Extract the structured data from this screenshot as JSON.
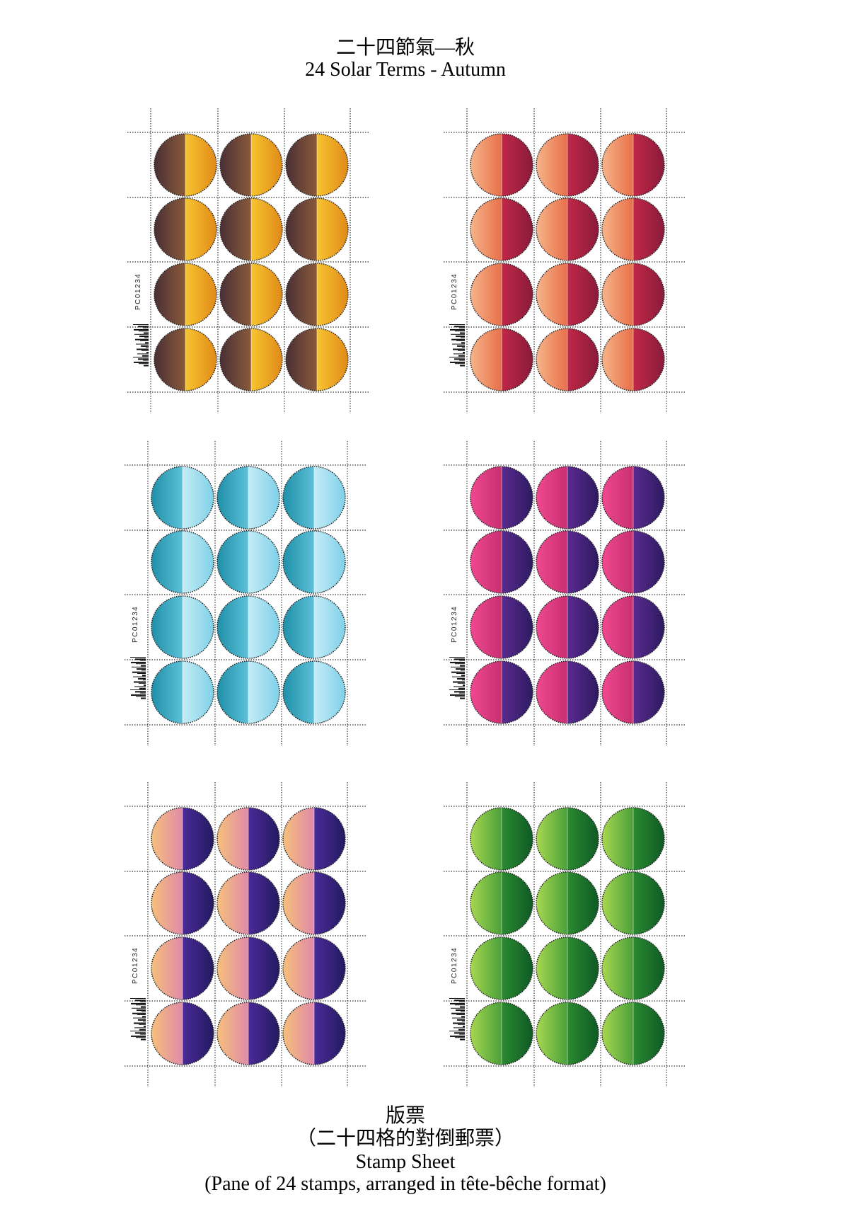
{
  "header": {
    "title_zh": "二十四節氣—秋",
    "title_en": "24 Solar Terms - Autumn"
  },
  "sheets": [
    {
      "serial": "PC01234"
    },
    {
      "serial": "PC01234"
    },
    {
      "serial": "PC01234"
    },
    {
      "serial": "PC01234"
    },
    {
      "serial": "PC01234"
    },
    {
      "serial": "PC01234"
    }
  ],
  "caption": {
    "line1": "版票",
    "line2": "（二十四格的對倒郵票）",
    "line3": "Stamp Sheet",
    "line4": "(Pane of 24 stamps, arranged in tête-bêche format)"
  }
}
